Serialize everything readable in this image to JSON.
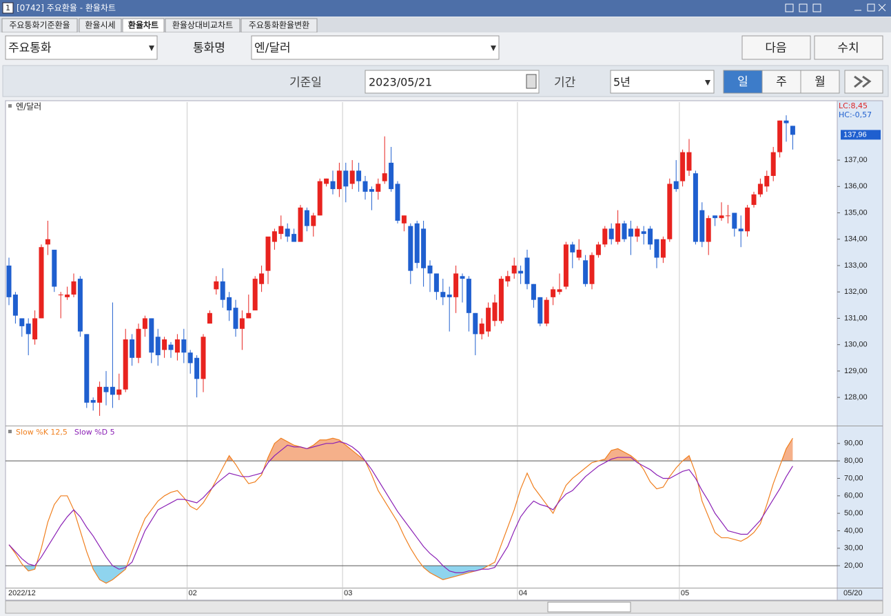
{
  "window": {
    "badge": "1",
    "title": "[0742] 주요환율 - 환율차트"
  },
  "tabs": [
    "주요통화기준환율",
    "환율시세",
    "환율차트",
    "환율상대비교차트",
    "주요통화환율변환"
  ],
  "toolbar": {
    "group": "주요통화",
    "currency_label": "통화명",
    "currency": "엔/달러",
    "buttons": [
      "다음",
      "수치"
    ]
  },
  "query": {
    "date_label": "기준일",
    "date": "2023/05/21",
    "period_label": "기간",
    "period": "5년",
    "units": [
      "일",
      "주",
      "월"
    ]
  },
  "chart_data": [
    {
      "type": "candlestick",
      "title": "엔/달러",
      "annotations": [
        "LC:8,45",
        "HC:-0,57"
      ],
      "last_close_label": "137,96",
      "corner_label": "05/20",
      "up_color": "#e8231f",
      "down_color": "#1f5fcf",
      "categories": [
        "2022/12",
        null,
        null,
        null,
        null,
        null,
        null,
        null,
        null,
        null,
        null,
        null,
        null,
        null,
        null,
        null,
        null,
        null,
        null,
        null,
        null,
        null,
        null,
        null,
        null,
        null,
        null,
        null,
        "02",
        null,
        null,
        null,
        null,
        null,
        null,
        null,
        null,
        null,
        null,
        null,
        null,
        null,
        null,
        null,
        null,
        null,
        null,
        null,
        null,
        null,
        null,
        null,
        "03",
        null,
        null,
        null,
        null,
        null,
        null,
        null,
        null,
        null,
        null,
        null,
        null,
        null,
        null,
        null,
        null,
        null,
        null,
        null,
        null,
        null,
        null,
        null,
        null,
        null,
        null,
        "04",
        null,
        null,
        null,
        null,
        null,
        null,
        null,
        null,
        null,
        null,
        null,
        null,
        null,
        null,
        null,
        null,
        null,
        null,
        null,
        null,
        null,
        null,
        null,
        null,
        "05",
        null,
        null,
        null,
        null,
        null,
        null,
        null,
        null,
        null,
        null,
        null,
        null,
        null,
        null,
        null,
        null,
        null
      ],
      "ohlc": [
        [
          133.0,
          133.3,
          131.5,
          131.8
        ],
        [
          131.9,
          132.0,
          130.8,
          131.1
        ],
        [
          131.0,
          131.0,
          130.3,
          130.7
        ],
        [
          130.8,
          131.0,
          129.6,
          130.4
        ],
        [
          130.2,
          131.3,
          130.0,
          131.0
        ],
        [
          131.0,
          133.8,
          131.0,
          133.7
        ],
        [
          133.8,
          134.7,
          133.4,
          134.0
        ],
        [
          133.6,
          133.6,
          132.0,
          132.2
        ],
        [
          131.9,
          132.0,
          131.0,
          131.9
        ],
        [
          131.8,
          132.2,
          131.7,
          131.9
        ],
        [
          131.9,
          132.7,
          131.8,
          132.4
        ],
        [
          132.5,
          132.6,
          130.3,
          130.5
        ],
        [
          130.4,
          130.4,
          127.6,
          127.8
        ],
        [
          127.9,
          128.0,
          127.5,
          127.8
        ],
        [
          127.8,
          128.6,
          127.3,
          128.4
        ],
        [
          128.4,
          129.0,
          127.7,
          128.2
        ],
        [
          128.4,
          131.6,
          127.6,
          128.1
        ],
        [
          128.1,
          128.9,
          127.9,
          128.3
        ],
        [
          128.3,
          130.6,
          128.2,
          130.2
        ],
        [
          130.2,
          130.4,
          129.2,
          129.5
        ],
        [
          129.5,
          130.8,
          129.3,
          130.6
        ],
        [
          130.6,
          131.1,
          130.3,
          131.0
        ],
        [
          131.0,
          131.0,
          129.3,
          129.7
        ],
        [
          130.3,
          130.6,
          129.2,
          129.6
        ],
        [
          129.8,
          130.3,
          129.5,
          130.2
        ],
        [
          130.0,
          130.1,
          129.5,
          129.8
        ],
        [
          129.7,
          130.4,
          129.4,
          130.2
        ],
        [
          130.2,
          130.6,
          129.3,
          129.7
        ],
        [
          129.7,
          129.8,
          128.9,
          129.3
        ],
        [
          129.5,
          129.6,
          128.0,
          128.7
        ],
        [
          128.7,
          130.4,
          128.2,
          130.3
        ],
        [
          130.8,
          131.3,
          130.8,
          131.2
        ],
        [
          132.1,
          132.6,
          131.9,
          132.4
        ],
        [
          132.4,
          132.9,
          131.4,
          131.7
        ],
        [
          131.8,
          132.0,
          130.9,
          131.3
        ],
        [
          131.4,
          131.7,
          130.3,
          130.6
        ],
        [
          130.6,
          131.3,
          129.8,
          131.0
        ],
        [
          131.0,
          131.9,
          131.0,
          131.2
        ],
        [
          131.3,
          132.6,
          131.3,
          132.5
        ],
        [
          132.3,
          133.0,
          132.0,
          132.7
        ],
        [
          132.8,
          134.1,
          132.3,
          134.1
        ],
        [
          133.9,
          134.4,
          133.6,
          134.3
        ],
        [
          134.2,
          134.9,
          134.0,
          134.5
        ],
        [
          134.4,
          134.6,
          133.9,
          134.1
        ],
        [
          134.2,
          134.4,
          133.9,
          133.9
        ],
        [
          133.9,
          135.3,
          133.9,
          135.2
        ],
        [
          135.1,
          135.2,
          134.3,
          134.5
        ],
        [
          134.5,
          135.0,
          134.1,
          134.9
        ],
        [
          134.9,
          136.3,
          134.9,
          136.2
        ],
        [
          136.1,
          136.3,
          136.0,
          136.3
        ],
        [
          136.2,
          136.6,
          135.7,
          135.9
        ],
        [
          135.9,
          136.9,
          135.6,
          136.6
        ],
        [
          136.6,
          136.9,
          135.4,
          136.0
        ],
        [
          136.1,
          137.0,
          135.9,
          136.6
        ],
        [
          136.6,
          136.9,
          135.8,
          136.2
        ],
        [
          136.2,
          136.4,
          135.5,
          135.8
        ],
        [
          135.9,
          136.0,
          135.1,
          135.8
        ],
        [
          135.8,
          136.3,
          135.5,
          136.1
        ],
        [
          136.2,
          137.9,
          136.1,
          136.5
        ],
        [
          136.9,
          137.5,
          135.8,
          135.9
        ],
        [
          136.1,
          136.2,
          134.6,
          134.7
        ],
        [
          134.6,
          134.9,
          134.3,
          134.9
        ],
        [
          134.5,
          134.6,
          132.3,
          132.8
        ],
        [
          134.6,
          134.7,
          132.9,
          133.1
        ],
        [
          134.4,
          134.7,
          132.2,
          132.9
        ],
        [
          133.0,
          133.2,
          132.0,
          132.7
        ],
        [
          132.7,
          132.7,
          131.7,
          132.0
        ],
        [
          132.0,
          132.5,
          131.5,
          131.8
        ],
        [
          131.9,
          132.2,
          130.5,
          131.8
        ],
        [
          131.8,
          133.0,
          131.2,
          132.7
        ],
        [
          132.6,
          132.7,
          131.6,
          132.5
        ],
        [
          132.5,
          132.6,
          130.5,
          131.2
        ],
        [
          131.2,
          131.2,
          129.6,
          130.4
        ],
        [
          130.4,
          131.0,
          130.2,
          130.8
        ],
        [
          130.5,
          131.6,
          130.3,
          131.4
        ],
        [
          130.9,
          131.9,
          130.7,
          131.6
        ],
        [
          130.9,
          132.6,
          130.8,
          132.5
        ],
        [
          132.4,
          132.8,
          132.2,
          132.6
        ],
        [
          132.7,
          133.3,
          132.5,
          133.0
        ],
        [
          132.8,
          133.0,
          132.3,
          132.7
        ],
        [
          133.3,
          133.6,
          132.1,
          132.3
        ],
        [
          132.3,
          132.3,
          131.4,
          131.7
        ],
        [
          131.8,
          131.8,
          130.7,
          130.8
        ],
        [
          130.8,
          131.8,
          130.7,
          131.7
        ],
        [
          131.8,
          132.2,
          131.5,
          132.1
        ],
        [
          132.0,
          132.7,
          131.9,
          132.1
        ],
        [
          132.2,
          133.9,
          132.1,
          133.8
        ],
        [
          133.8,
          133.9,
          132.9,
          133.5
        ],
        [
          133.3,
          134.0,
          133.2,
          133.6
        ],
        [
          133.2,
          133.4,
          132.2,
          132.3
        ],
        [
          132.3,
          133.5,
          132.1,
          133.4
        ],
        [
          133.4,
          133.9,
          133.3,
          133.8
        ],
        [
          133.8,
          134.5,
          133.7,
          134.4
        ],
        [
          134.4,
          134.6,
          133.8,
          134.0
        ],
        [
          133.9,
          135.1,
          133.8,
          134.6
        ],
        [
          134.6,
          134.7,
          133.9,
          134.0
        ],
        [
          134.4,
          134.7,
          133.4,
          134.1
        ],
        [
          134.1,
          134.5,
          133.9,
          134.4
        ],
        [
          134.3,
          134.5,
          133.8,
          134.2
        ],
        [
          134.4,
          134.5,
          133.6,
          133.8
        ],
        [
          134.0,
          134.0,
          132.9,
          133.3
        ],
        [
          133.3,
          134.1,
          133.1,
          134.0
        ],
        [
          134.0,
          136.3,
          133.9,
          136.1
        ],
        [
          136.2,
          137.0,
          135.8,
          135.9
        ],
        [
          136.2,
          137.4,
          136.0,
          137.3
        ],
        [
          136.6,
          137.8,
          136.4,
          137.3
        ],
        [
          136.5,
          136.6,
          133.8,
          133.9
        ],
        [
          135.1,
          135.4,
          133.7,
          133.9
        ],
        [
          133.9,
          134.9,
          133.4,
          134.8
        ],
        [
          134.9,
          134.9,
          134.5,
          134.8
        ],
        [
          134.8,
          135.4,
          134.7,
          134.9
        ],
        [
          134.9,
          135.3,
          134.6,
          134.9
        ],
        [
          135.0,
          135.0,
          134.1,
          134.4
        ],
        [
          134.4,
          134.9,
          133.7,
          134.3
        ],
        [
          134.3,
          135.3,
          134.1,
          135.2
        ],
        [
          135.3,
          135.8,
          135.2,
          135.7
        ],
        [
          135.7,
          136.3,
          135.6,
          136.1
        ],
        [
          136.0,
          136.6,
          135.8,
          136.4
        ],
        [
          136.4,
          137.5,
          136.2,
          137.3
        ],
        [
          137.3,
          138.5,
          137.1,
          138.5
        ],
        [
          138.5,
          138.7,
          137.7,
          138.4
        ],
        [
          138.3,
          138.3,
          137.4,
          137.96
        ]
      ],
      "ylim": [
        126.93,
        139.2
      ],
      "yticks": [
        {
          "value": 128,
          "label": "128,00"
        },
        {
          "value": 129,
          "label": "129,00"
        },
        {
          "value": 130,
          "label": "130,00"
        },
        {
          "value": 131,
          "label": "131,00"
        },
        {
          "value": 132,
          "label": "132,00"
        },
        {
          "value": 133,
          "label": "133,00"
        },
        {
          "value": 134,
          "label": "134,00"
        },
        {
          "value": 135,
          "label": "135,00"
        },
        {
          "value": 136,
          "label": "136,00"
        },
        {
          "value": 137,
          "label": "137,00"
        }
      ],
      "grid": "vertical"
    },
    {
      "type": "line",
      "series": [
        {
          "name": "Slow %K 12,5",
          "color": "#f07f1e",
          "values": [
            32,
            27,
            21,
            17,
            18,
            30,
            45,
            55,
            60,
            60,
            52,
            40,
            28,
            18,
            12,
            10,
            12,
            15,
            18,
            28,
            38,
            47,
            52,
            57,
            60,
            62,
            63,
            59,
            54,
            52,
            56,
            62,
            69,
            76,
            83,
            78,
            72,
            67,
            68,
            72,
            82,
            90,
            93,
            91,
            89,
            88,
            87,
            89,
            92,
            92,
            93,
            92,
            89,
            86,
            83,
            80,
            72,
            63,
            57,
            51,
            45,
            37,
            30,
            24,
            19,
            16,
            14,
            12,
            13,
            14,
            15,
            16,
            17,
            18,
            20,
            22,
            32,
            42,
            52,
            64,
            73,
            65,
            60,
            55,
            50,
            58,
            66,
            70,
            73,
            76,
            79,
            80,
            81,
            86,
            87,
            85,
            83,
            80,
            75,
            68,
            64,
            65,
            71,
            76,
            80,
            83,
            73,
            57,
            48,
            39,
            36,
            36,
            35,
            34,
            36,
            39,
            44,
            55,
            67,
            77,
            87,
            93
          ]
        },
        {
          "name": "Slow %D 5",
          "color": "#8a1fb5",
          "values": [
            32,
            28,
            24,
            21,
            20,
            25,
            31,
            37,
            43,
            48,
            52,
            48,
            42,
            37,
            31,
            25,
            20,
            18,
            19,
            22,
            31,
            40,
            46,
            52,
            54,
            56,
            58,
            58,
            57,
            56,
            59,
            63,
            67,
            70,
            73,
            72,
            71,
            71,
            72,
            73,
            79,
            83,
            86,
            89,
            88,
            88,
            87,
            88,
            89,
            90,
            90,
            91,
            90,
            88,
            85,
            80,
            75,
            69,
            63,
            57,
            51,
            46,
            41,
            36,
            31,
            27,
            24,
            20,
            17,
            16,
            16,
            17,
            17,
            18,
            18,
            19,
            25,
            31,
            40,
            48,
            53,
            57,
            55,
            54,
            52,
            57,
            61,
            63,
            67,
            71,
            74,
            77,
            79,
            81,
            82,
            82,
            82,
            79,
            77,
            75,
            72,
            70,
            70,
            72,
            74,
            75,
            70,
            63,
            57,
            50,
            45,
            40,
            39,
            38,
            38,
            42,
            46,
            52,
            58,
            64,
            71,
            77
          ]
        }
      ],
      "overbought": 80,
      "oversold": 20,
      "overbought_color": "#f5b08a",
      "oversold_color": "#8fd4ee",
      "ylim": [
        7.4,
        99.8
      ],
      "yticks": [
        {
          "value": 20,
          "label": "20,00"
        },
        {
          "value": 30,
          "label": "30,00"
        },
        {
          "value": 40,
          "label": "40,00"
        },
        {
          "value": 50,
          "label": "50,00"
        },
        {
          "value": 60,
          "label": "60,00"
        },
        {
          "value": 70,
          "label": "70,00"
        },
        {
          "value": 80,
          "label": "80,00"
        },
        {
          "value": 90,
          "label": "90,00"
        }
      ]
    }
  ]
}
